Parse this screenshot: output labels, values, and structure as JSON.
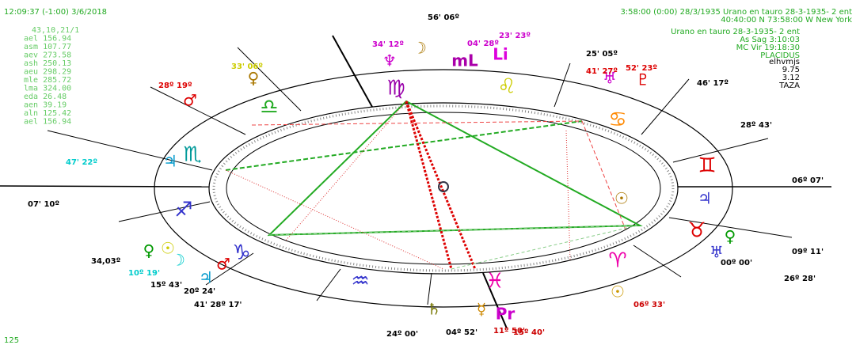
{
  "header": {
    "left_time": "12:09:37 (-1:00) 3/6/2018",
    "right_time": "3:58:00 (0:00) 28/3/1935  Urano en tauro 28-3-1935- 2 ent",
    "right_place": "40:40:00 N  73:58:00 W  New York"
  },
  "left_list": [
    "43,10,21/1",
    "ael 156.94",
    "asm 107.77",
    "aev 273.58",
    "ash 250.13",
    "aeu 298.29",
    "mle 285.72",
    "lma 324.00",
    "eda 26.48",
    "aen 39.19",
    "aln 125.42",
    "ael 156.94"
  ],
  "right_info": [
    "Urano en tauro 28-3-1935- 2 ent",
    "As Sag   3:10:03",
    "MC Vir  19:18:30",
    "PLACIDUS"
  ],
  "right_extra": [
    "elhvmjs",
    "9.75",
    "3.12",
    "TAZA"
  ],
  "footer": "125",
  "signs": [
    "♍",
    "♌",
    "♋",
    "♊",
    "♉",
    "♈",
    "♓",
    "♒",
    "♑",
    "♐",
    "♏",
    "♎"
  ],
  "planets": [
    "♆",
    "☽",
    "mL",
    "Li",
    "♅",
    "♇",
    "♂",
    "♀",
    "☉",
    "☿",
    "♄",
    "♃",
    "Pr",
    "♃",
    "☉",
    "♀",
    "♂",
    "☽",
    "♃",
    "♀",
    "☉",
    "♅"
  ],
  "degrees": [
    "07' 10º",
    "06º 07'",
    "34,03º",
    "09º 11'",
    "26º 28'",
    "06º 33'",
    "24º 00'",
    "04º 52'",
    "11º 50'",
    "15º 40'",
    "47' 22º",
    "28º 19º",
    "33' 06º",
    "34' 12º",
    "04' 28º",
    "23' 23º",
    "56' 06º",
    "25' 05º",
    "41' 27º",
    "52' 23º",
    "46' 17º",
    "28º 43'",
    "00º 00'",
    "10º 19'",
    "15º 43'",
    "20º 24'",
    "41' 28º 17'"
  ]
}
